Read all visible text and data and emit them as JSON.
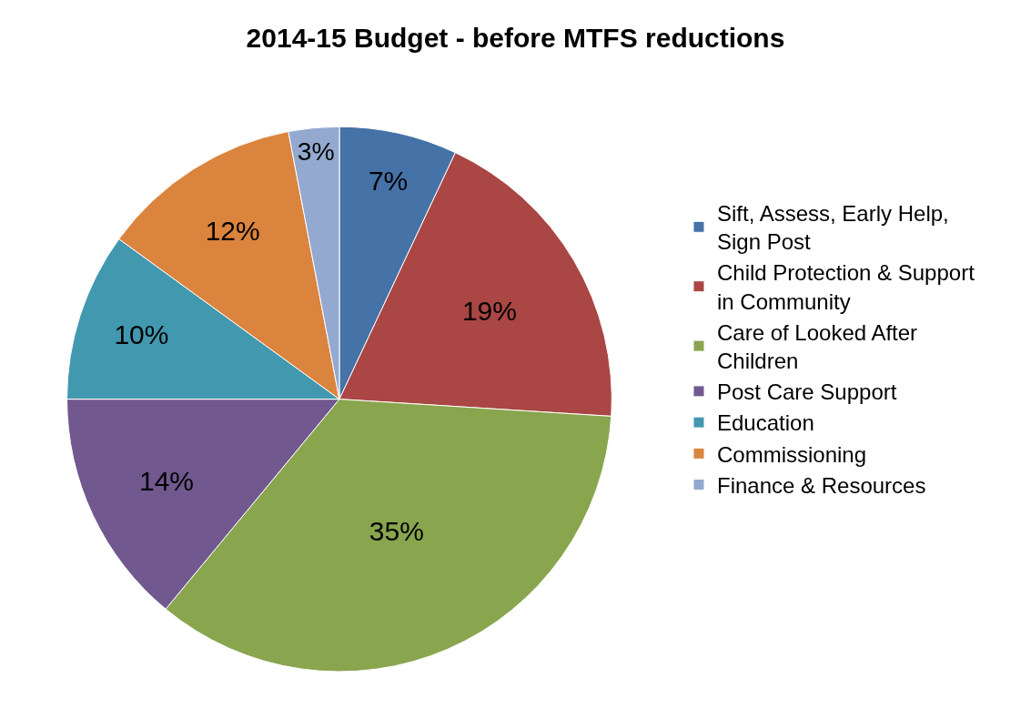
{
  "chart_data": {
    "type": "pie",
    "title": "2014-15 Budget - before MTFS reductions",
    "categories": [
      "Sift, Assess, Early Help, Sign Post",
      "Child Protection & Support in Community",
      "Care of Looked After Children",
      "Post Care Support",
      "Education",
      "Commissioning",
      "Finance & Resources"
    ],
    "values": [
      7,
      19,
      35,
      14,
      10,
      12,
      3
    ],
    "colors": [
      "#4572a7",
      "#aa4643",
      "#89a54e",
      "#71588f",
      "#4198af",
      "#db843d",
      "#93a9cf"
    ],
    "value_labels": [
      "7%",
      "19%",
      "35%",
      "14%",
      "10%",
      "12%",
      "3%"
    ],
    "legend": "right"
  }
}
